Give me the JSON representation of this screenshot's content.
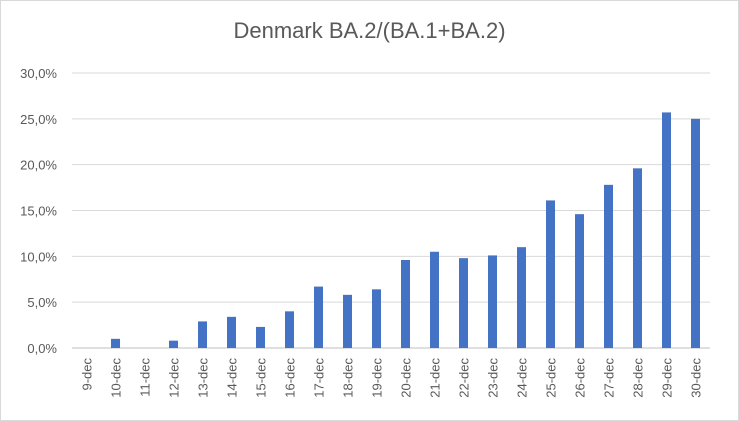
{
  "chart_data": {
    "type": "bar",
    "title": "Denmark BA.2/(BA.1+BA.2)",
    "xlabel": "",
    "ylabel": "",
    "categories": [
      "9-dec",
      "10-dec",
      "11-dec",
      "12-dec",
      "13-dec",
      "14-dec",
      "15-dec",
      "16-dec",
      "17-dec",
      "18-dec",
      "19-dec",
      "20-dec",
      "21-dec",
      "22-dec",
      "23-dec",
      "24-dec",
      "25-dec",
      "26-dec",
      "27-dec",
      "28-dec",
      "29-dec",
      "30-dec"
    ],
    "values": [
      0.0,
      1.0,
      0.0,
      0.8,
      2.9,
      3.4,
      2.3,
      4.0,
      6.7,
      5.8,
      6.4,
      9.6,
      10.5,
      9.8,
      10.1,
      11.0,
      16.1,
      14.6,
      17.8,
      19.6,
      25.7,
      25.0
    ],
    "ylim": [
      0,
      30
    ],
    "yticks": [
      "0,0%",
      "5,0%",
      "10,0%",
      "15,0%",
      "20,0%",
      "25,0%",
      "30,0%"
    ],
    "grid": true,
    "bar_color": "#4472c4"
  }
}
